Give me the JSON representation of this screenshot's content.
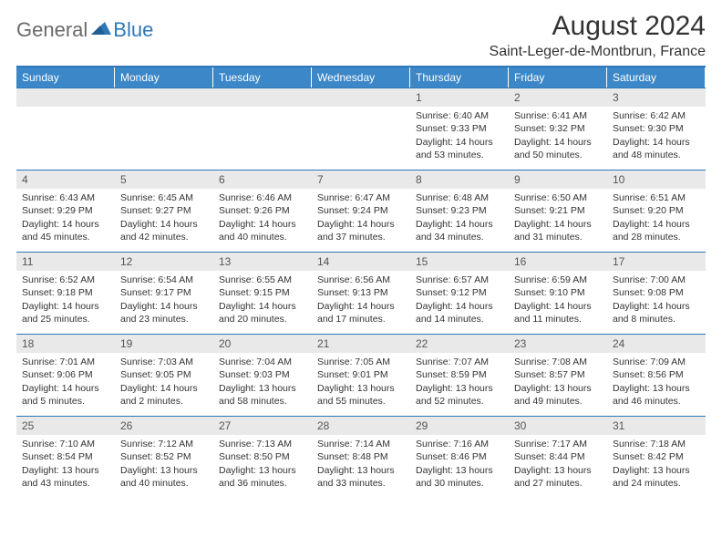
{
  "brand": {
    "general": "General",
    "blue": "Blue"
  },
  "title": "August 2024",
  "location": "Saint-Leger-de-Montbrun, France",
  "colors": {
    "header_bg": "#3b87c8",
    "rule": "#2f77b8",
    "daynum_bg": "#e9e9e9",
    "text": "#333333",
    "logo_gray": "#6a6a6a",
    "logo_blue": "#2f77b8"
  },
  "daysOfWeek": [
    "Sunday",
    "Monday",
    "Tuesday",
    "Wednesday",
    "Thursday",
    "Friday",
    "Saturday"
  ],
  "cells": [
    {
      "empty": true
    },
    {
      "empty": true
    },
    {
      "empty": true
    },
    {
      "empty": true
    },
    {
      "n": "1",
      "sunrise": "6:40 AM",
      "sunset": "9:33 PM",
      "daylight": "14 hours and 53 minutes."
    },
    {
      "n": "2",
      "sunrise": "6:41 AM",
      "sunset": "9:32 PM",
      "daylight": "14 hours and 50 minutes."
    },
    {
      "n": "3",
      "sunrise": "6:42 AM",
      "sunset": "9:30 PM",
      "daylight": "14 hours and 48 minutes."
    },
    {
      "n": "4",
      "sunrise": "6:43 AM",
      "sunset": "9:29 PM",
      "daylight": "14 hours and 45 minutes."
    },
    {
      "n": "5",
      "sunrise": "6:45 AM",
      "sunset": "9:27 PM",
      "daylight": "14 hours and 42 minutes."
    },
    {
      "n": "6",
      "sunrise": "6:46 AM",
      "sunset": "9:26 PM",
      "daylight": "14 hours and 40 minutes."
    },
    {
      "n": "7",
      "sunrise": "6:47 AM",
      "sunset": "9:24 PM",
      "daylight": "14 hours and 37 minutes."
    },
    {
      "n": "8",
      "sunrise": "6:48 AM",
      "sunset": "9:23 PM",
      "daylight": "14 hours and 34 minutes."
    },
    {
      "n": "9",
      "sunrise": "6:50 AM",
      "sunset": "9:21 PM",
      "daylight": "14 hours and 31 minutes."
    },
    {
      "n": "10",
      "sunrise": "6:51 AM",
      "sunset": "9:20 PM",
      "daylight": "14 hours and 28 minutes."
    },
    {
      "n": "11",
      "sunrise": "6:52 AM",
      "sunset": "9:18 PM",
      "daylight": "14 hours and 25 minutes."
    },
    {
      "n": "12",
      "sunrise": "6:54 AM",
      "sunset": "9:17 PM",
      "daylight": "14 hours and 23 minutes."
    },
    {
      "n": "13",
      "sunrise": "6:55 AM",
      "sunset": "9:15 PM",
      "daylight": "14 hours and 20 minutes."
    },
    {
      "n": "14",
      "sunrise": "6:56 AM",
      "sunset": "9:13 PM",
      "daylight": "14 hours and 17 minutes."
    },
    {
      "n": "15",
      "sunrise": "6:57 AM",
      "sunset": "9:12 PM",
      "daylight": "14 hours and 14 minutes."
    },
    {
      "n": "16",
      "sunrise": "6:59 AM",
      "sunset": "9:10 PM",
      "daylight": "14 hours and 11 minutes."
    },
    {
      "n": "17",
      "sunrise": "7:00 AM",
      "sunset": "9:08 PM",
      "daylight": "14 hours and 8 minutes."
    },
    {
      "n": "18",
      "sunrise": "7:01 AM",
      "sunset": "9:06 PM",
      "daylight": "14 hours and 5 minutes."
    },
    {
      "n": "19",
      "sunrise": "7:03 AM",
      "sunset": "9:05 PM",
      "daylight": "14 hours and 2 minutes."
    },
    {
      "n": "20",
      "sunrise": "7:04 AM",
      "sunset": "9:03 PM",
      "daylight": "13 hours and 58 minutes."
    },
    {
      "n": "21",
      "sunrise": "7:05 AM",
      "sunset": "9:01 PM",
      "daylight": "13 hours and 55 minutes."
    },
    {
      "n": "22",
      "sunrise": "7:07 AM",
      "sunset": "8:59 PM",
      "daylight": "13 hours and 52 minutes."
    },
    {
      "n": "23",
      "sunrise": "7:08 AM",
      "sunset": "8:57 PM",
      "daylight": "13 hours and 49 minutes."
    },
    {
      "n": "24",
      "sunrise": "7:09 AM",
      "sunset": "8:56 PM",
      "daylight": "13 hours and 46 minutes."
    },
    {
      "n": "25",
      "sunrise": "7:10 AM",
      "sunset": "8:54 PM",
      "daylight": "13 hours and 43 minutes."
    },
    {
      "n": "26",
      "sunrise": "7:12 AM",
      "sunset": "8:52 PM",
      "daylight": "13 hours and 40 minutes."
    },
    {
      "n": "27",
      "sunrise": "7:13 AM",
      "sunset": "8:50 PM",
      "daylight": "13 hours and 36 minutes."
    },
    {
      "n": "28",
      "sunrise": "7:14 AM",
      "sunset": "8:48 PM",
      "daylight": "13 hours and 33 minutes."
    },
    {
      "n": "29",
      "sunrise": "7:16 AM",
      "sunset": "8:46 PM",
      "daylight": "13 hours and 30 minutes."
    },
    {
      "n": "30",
      "sunrise": "7:17 AM",
      "sunset": "8:44 PM",
      "daylight": "13 hours and 27 minutes."
    },
    {
      "n": "31",
      "sunrise": "7:18 AM",
      "sunset": "8:42 PM",
      "daylight": "13 hours and 24 minutes."
    }
  ],
  "labels": {
    "sunrise": "Sunrise:",
    "sunset": "Sunset:",
    "daylight": "Daylight:"
  }
}
